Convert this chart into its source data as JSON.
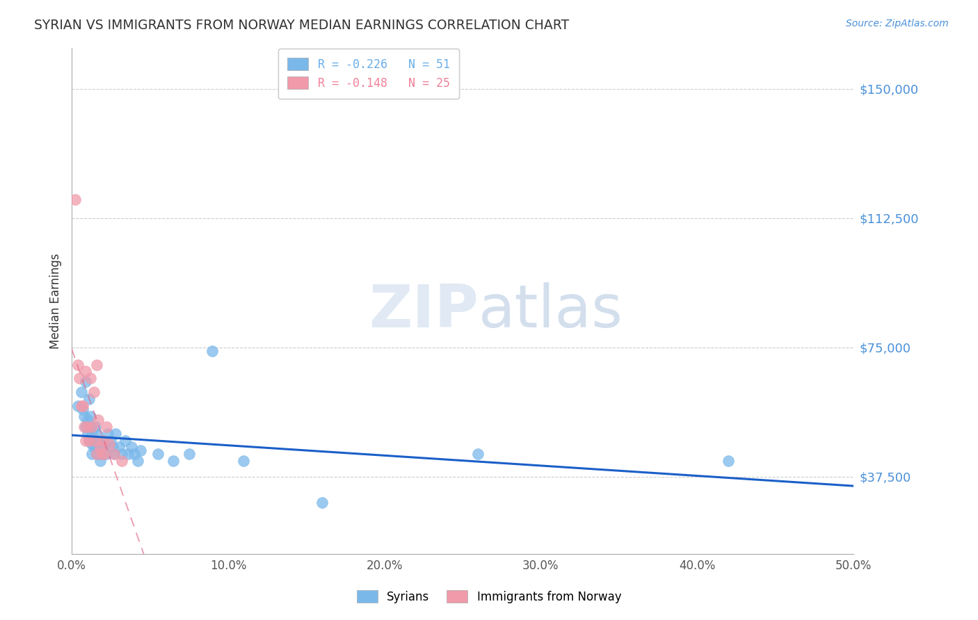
{
  "title": "SYRIAN VS IMMIGRANTS FROM NORWAY MEDIAN EARNINGS CORRELATION CHART",
  "source_text": "Source: ZipAtlas.com",
  "ylabel": "Median Earnings",
  "xlim": [
    0.0,
    0.5
  ],
  "ylim": [
    15000,
    162000
  ],
  "yticks": [
    37500,
    75000,
    112500,
    150000
  ],
  "ytick_labels": [
    "$37,500",
    "$75,000",
    "$112,500",
    "$150,000"
  ],
  "xtick_labels": [
    "0.0%",
    "10.0%",
    "20.0%",
    "30.0%",
    "40.0%",
    "50.0%"
  ],
  "xticks": [
    0.0,
    0.1,
    0.2,
    0.3,
    0.4,
    0.5
  ],
  "legend_entries": [
    {
      "label": "R = -0.226   N = 51",
      "color": "#6aaee8"
    },
    {
      "label": "R = -0.148   N = 25",
      "color": "#f08098"
    }
  ],
  "syrians_color": "#7ab8ea",
  "norway_color": "#f09aaa",
  "trend_syrian_color": "#1a5fc8",
  "trend_norway_color": "#e06080",
  "syrians_x": [
    0.004,
    0.006,
    0.007,
    0.008,
    0.009,
    0.009,
    0.01,
    0.01,
    0.011,
    0.011,
    0.012,
    0.012,
    0.013,
    0.013,
    0.013,
    0.014,
    0.014,
    0.015,
    0.015,
    0.016,
    0.016,
    0.017,
    0.017,
    0.018,
    0.018,
    0.019,
    0.02,
    0.02,
    0.021,
    0.022,
    0.023,
    0.025,
    0.026,
    0.027,
    0.028,
    0.03,
    0.032,
    0.034,
    0.036,
    0.038,
    0.04,
    0.042,
    0.044,
    0.055,
    0.065,
    0.075,
    0.09,
    0.11,
    0.16,
    0.26,
    0.42
  ],
  "syrians_y": [
    58000,
    62000,
    57000,
    55000,
    52000,
    65000,
    50000,
    54000,
    60000,
    48000,
    52000,
    55000,
    50000,
    47000,
    44000,
    48000,
    46000,
    52000,
    48000,
    50000,
    44000,
    48000,
    46000,
    44000,
    42000,
    46000,
    44000,
    48000,
    46000,
    44000,
    50000,
    48000,
    46000,
    44000,
    50000,
    46000,
    44000,
    48000,
    44000,
    46000,
    44000,
    42000,
    45000,
    44000,
    42000,
    44000,
    74000,
    42000,
    30000,
    44000,
    42000
  ],
  "norway_x": [
    0.002,
    0.004,
    0.005,
    0.006,
    0.007,
    0.008,
    0.009,
    0.009,
    0.01,
    0.011,
    0.012,
    0.013,
    0.014,
    0.015,
    0.016,
    0.016,
    0.017,
    0.018,
    0.019,
    0.02,
    0.021,
    0.022,
    0.024,
    0.027,
    0.032
  ],
  "norway_y": [
    118000,
    70000,
    66000,
    58000,
    58000,
    52000,
    68000,
    48000,
    52000,
    48000,
    66000,
    52000,
    62000,
    48000,
    70000,
    44000,
    54000,
    46000,
    44000,
    48000,
    44000,
    52000,
    47000,
    44000,
    42000
  ]
}
